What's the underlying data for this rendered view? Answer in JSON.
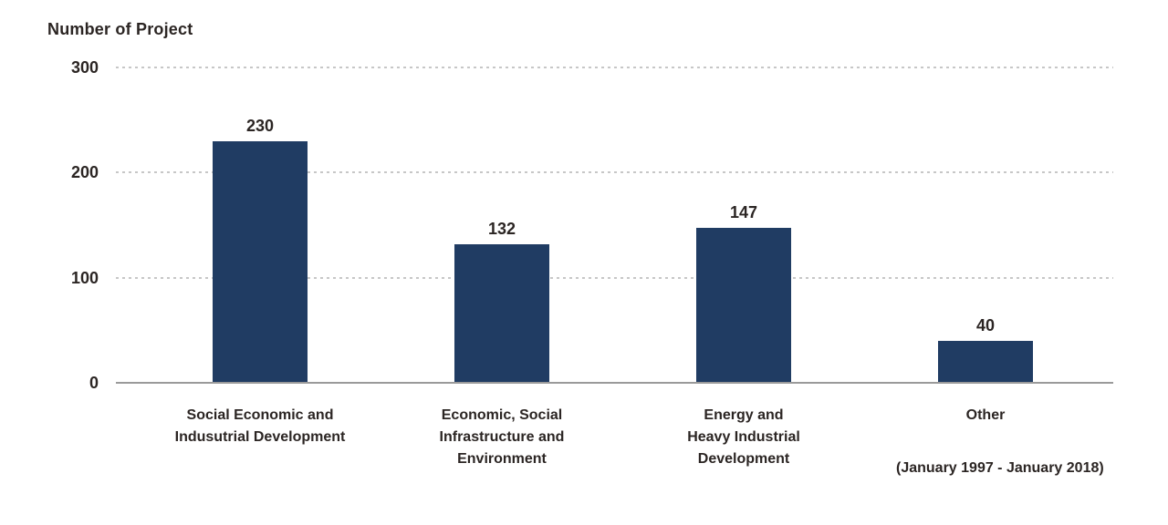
{
  "chart_data": {
    "type": "bar",
    "title": "Number of Project",
    "footnote": "(January 1997 - January 2018)",
    "categories": [
      "Social Economic and Indusutrial Development",
      "Economic, Social Infrastructure and Environment",
      "Energy and Heavy Industrial Development",
      "Other"
    ],
    "category_lines": [
      [
        "Social Economic and",
        "Indusutrial Development"
      ],
      [
        "Economic, Social",
        "Infrastructure and",
        "Environment"
      ],
      [
        "Energy and",
        "Heavy Industrial",
        "Development"
      ],
      [
        "Other"
      ]
    ],
    "values": [
      230,
      132,
      147,
      40
    ],
    "value_labels": [
      "230",
      "132",
      "147",
      "40"
    ],
    "yticks": [
      0,
      100,
      200,
      300
    ],
    "ylim": [
      0,
      300
    ],
    "xlabel": "",
    "ylabel": "",
    "grid": "horizontal-dashed",
    "legend": "none",
    "colors": {
      "bar": "#203c63",
      "text": "#2b2523",
      "gridline": "#c7c7c7",
      "axis_line": "#9a9a9a",
      "background": "#ffffff"
    }
  }
}
